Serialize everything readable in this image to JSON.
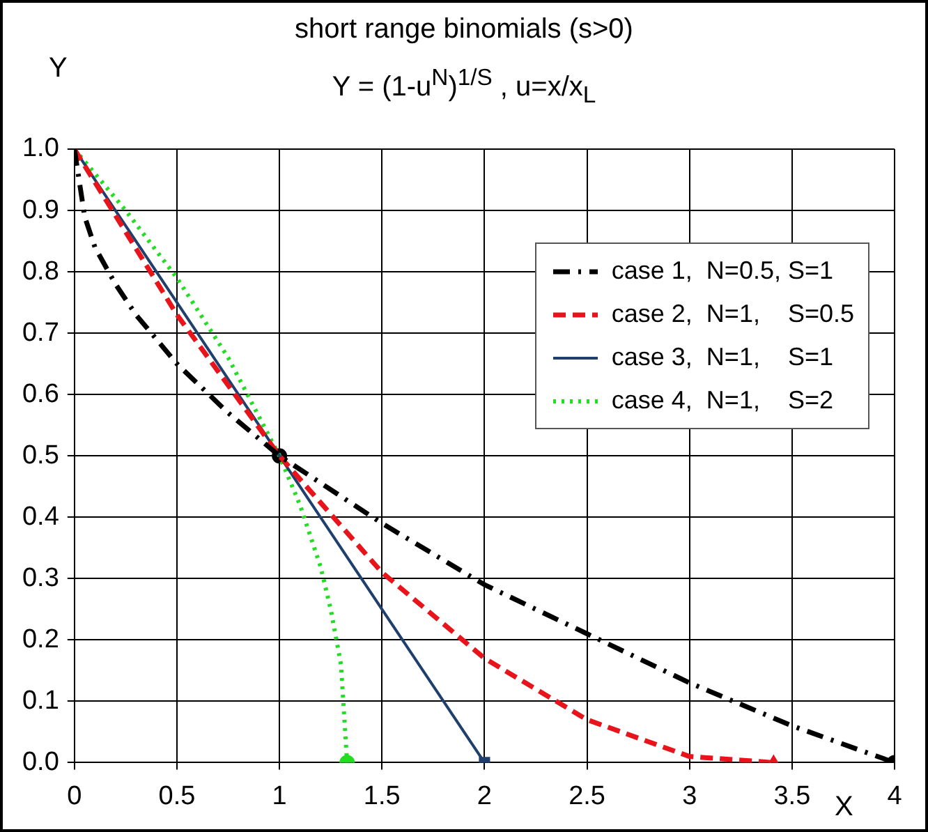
{
  "chart_data": {
    "type": "line",
    "title": "short range binomials (s>0)",
    "subtitle": "Y = (1-u$^{N}$)$^{1/S}$ , u=x/x$_{L}$",
    "xlabel": "X",
    "ylabel": "Y",
    "xlim": [
      0,
      4
    ],
    "xticks": [
      0,
      0.5,
      1,
      1.5,
      2,
      2.5,
      3,
      3.5,
      4
    ],
    "ylim": [
      0,
      1
    ],
    "yticks": [
      {
        "value": 0,
        "label": "0.0"
      },
      {
        "value": 0.1,
        "label": "0.1"
      },
      {
        "value": 0.2,
        "label": "0.2"
      },
      {
        "value": 0.3,
        "label": "0.3"
      },
      {
        "value": 0.4,
        "label": "0.4"
      },
      {
        "value": 0.5,
        "label": "0.5"
      },
      {
        "value": 0.6,
        "label": "0.6"
      },
      {
        "value": 0.7,
        "label": "0.7"
      },
      {
        "value": 0.8,
        "label": "0.8"
      },
      {
        "value": 0.9,
        "label": "0.9"
      },
      {
        "value": 1,
        "label": "1.0"
      }
    ],
    "grid": true,
    "legend": "top right",
    "marker": "none",
    "series": [
      {
        "name": "case 1,  N=0.5, S=1",
        "color": "#000000",
        "line_style": "dashdot",
        "x": [
          0,
          0.05,
          0.1,
          0.2,
          0.3,
          0.5,
          0.75,
          1,
          1.5,
          2,
          2.5,
          3,
          3.5,
          4
        ],
        "values": [
          1,
          0.89,
          0.84,
          0.78,
          0.73,
          0.65,
          0.57,
          0.5,
          0.39,
          0.29,
          0.21,
          0.13,
          0.06,
          0
        ]
      },
      {
        "name": "case 2,  N=1,    S=0.5",
        "color": "#e8141b",
        "line_style": "dashed",
        "x": [
          0,
          0.5,
          1,
          1.5,
          2,
          2.5,
          3,
          3.41
        ],
        "values": [
          1,
          0.73,
          0.5,
          0.31,
          0.17,
          0.07,
          0.01,
          0
        ]
      },
      {
        "name": "case 3,  N=1,    S=1",
        "color": "#1f3f6e",
        "line_style": "solid",
        "x": [
          0,
          1,
          1.5,
          2
        ],
        "values": [
          1,
          0.5,
          0.25,
          0
        ]
      },
      {
        "name": "case 4,  N=1,    S=2",
        "color": "#22dd22",
        "line_style": "dotted",
        "x": [
          0,
          0.25,
          0.5,
          0.75,
          1,
          1.1,
          1.2,
          1.25,
          1.3,
          1.33
        ],
        "values": [
          1,
          0.9,
          0.79,
          0.66,
          0.5,
          0.42,
          0.32,
          0.25,
          0.16,
          0
        ]
      },
      {
        "type": "scatter",
        "marker": "circle",
        "color": "#000000",
        "x": [
          1,
          4
        ],
        "values": [
          0.5,
          0
        ]
      },
      {
        "type": "scatter",
        "marker": "triangle",
        "color": "#e8141b",
        "x": [
          3.41
        ],
        "values": [
          0
        ]
      },
      {
        "type": "scatter",
        "marker": "square",
        "color": "#1f3f6e",
        "x": [
          2
        ],
        "values": [
          0
        ]
      },
      {
        "type": "scatter",
        "marker": "circle",
        "color": "#22dd22",
        "x": [
          1.33
        ],
        "values": [
          0
        ]
      }
    ]
  }
}
